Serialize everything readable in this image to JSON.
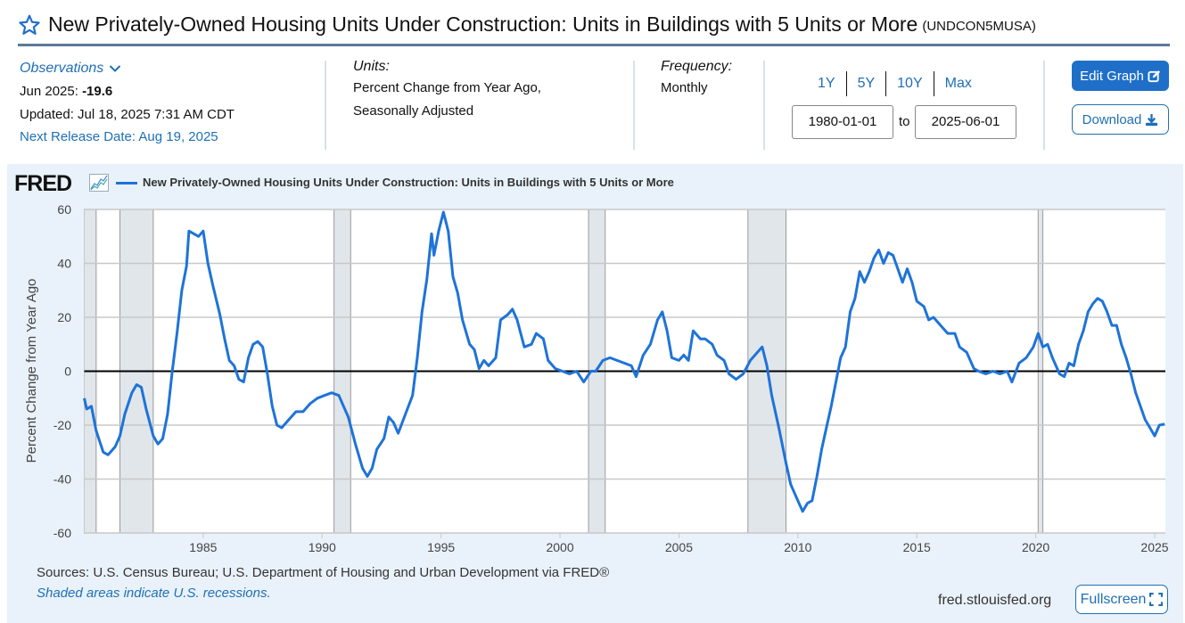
{
  "header": {
    "title": "New Privately-Owned Housing Units Under Construction: Units in Buildings with 5 Units or More",
    "series_id": "(UNDCON5MUSA)"
  },
  "observations": {
    "label": "Observations",
    "latest_label": "Jun 2025:",
    "latest_value": "-19.6",
    "updated": "Updated: Jul 18, 2025 7:31 AM CDT",
    "next_release": "Next Release Date: Aug 19, 2025"
  },
  "units": {
    "label": "Units:",
    "line1": "Percent Change from Year Ago,",
    "line2": "Seasonally Adjusted"
  },
  "frequency": {
    "label": "Frequency:",
    "value": "Monthly"
  },
  "range": {
    "buttons": [
      "1Y",
      "5Y",
      "10Y",
      "Max"
    ],
    "start": "1980-01-01",
    "to_label": "to",
    "end": "2025-06-01"
  },
  "actions": {
    "edit_graph": "Edit Graph",
    "download": "Download",
    "fullscreen": "Fullscreen"
  },
  "footer": {
    "sources": "Sources: U.S. Census Bureau; U.S. Department of Housing and Urban Development via FRED®",
    "shade_note": "Shaded areas indicate U.S. recessions.",
    "site": "fred.stlouisfed.org"
  },
  "logo": "FRED",
  "colors": {
    "accent": "#1f6fb5",
    "line": "#1e73d8",
    "recession": "#e1e6eb",
    "panel": "#e9f2fa"
  },
  "chart_data": {
    "type": "line",
    "title": "New Privately-Owned Housing Units Under Construction: Units in Buildings with 5 Units or More",
    "xlabel": "",
    "ylabel": "Percent Change from Year Ago",
    "xlim": [
      1980.0,
      2025.45
    ],
    "ylim": [
      -60,
      60
    ],
    "x_ticks": [
      1985,
      1990,
      1995,
      2000,
      2005,
      2010,
      2015,
      2020,
      2025
    ],
    "y_ticks": [
      -60,
      -40,
      -20,
      0,
      20,
      40,
      60
    ],
    "grid": true,
    "legend": "top-left",
    "recessions": [
      [
        1980.0,
        1980.5
      ],
      [
        1981.5,
        1982.9
      ],
      [
        1990.5,
        1991.2
      ],
      [
        2001.2,
        2001.9
      ],
      [
        2007.9,
        2009.5
      ],
      [
        2020.1,
        2020.3
      ]
    ],
    "series": [
      {
        "name": "New Privately-Owned Housing Units Under Construction: Units in Buildings with 5 Units or More",
        "x": [
          1980.0,
          1980.1,
          1980.3,
          1980.5,
          1980.8,
          1981.0,
          1981.3,
          1981.5,
          1981.7,
          1982.0,
          1982.2,
          1982.4,
          1982.6,
          1982.9,
          1983.1,
          1983.3,
          1983.5,
          1983.7,
          1983.9,
          1984.1,
          1984.3,
          1984.4,
          1984.6,
          1984.8,
          1985.0,
          1985.2,
          1985.4,
          1985.7,
          1985.9,
          1986.1,
          1986.3,
          1986.5,
          1986.7,
          1986.9,
          1987.1,
          1987.3,
          1987.5,
          1987.7,
          1987.9,
          1988.1,
          1988.3,
          1988.6,
          1988.9,
          1989.2,
          1989.5,
          1989.8,
          1990.1,
          1990.4,
          1990.7,
          1990.9,
          1991.1,
          1991.4,
          1991.7,
          1991.9,
          1992.1,
          1992.3,
          1992.6,
          1992.8,
          1993.0,
          1993.2,
          1993.5,
          1993.8,
          1994.0,
          1994.2,
          1994.4,
          1994.6,
          1994.7,
          1994.9,
          1995.1,
          1995.3,
          1995.5,
          1995.7,
          1995.9,
          1996.2,
          1996.4,
          1996.6,
          1996.8,
          1997.0,
          1997.3,
          1997.5,
          1997.8,
          1998.0,
          1998.2,
          1998.5,
          1998.8,
          1999.0,
          1999.3,
          1999.5,
          1999.8,
          2000.1,
          2000.4,
          2000.7,
          2001.0,
          2001.3,
          2001.5,
          2001.8,
          2002.1,
          2002.4,
          2002.7,
          2003.0,
          2003.2,
          2003.5,
          2003.8,
          2004.1,
          2004.3,
          2004.5,
          2004.7,
          2005.0,
          2005.2,
          2005.4,
          2005.6,
          2005.9,
          2006.1,
          2006.4,
          2006.6,
          2006.9,
          2007.1,
          2007.4,
          2007.7,
          2008.0,
          2008.3,
          2008.5,
          2008.7,
          2008.9,
          2009.2,
          2009.5,
          2009.7,
          2010.0,
          2010.2,
          2010.4,
          2010.6,
          2010.8,
          2011.0,
          2011.2,
          2011.4,
          2011.6,
          2011.8,
          2012.0,
          2012.2,
          2012.4,
          2012.6,
          2012.8,
          2013.0,
          2013.2,
          2013.4,
          2013.6,
          2013.8,
          2014.0,
          2014.2,
          2014.4,
          2014.6,
          2014.8,
          2015.0,
          2015.3,
          2015.5,
          2015.7,
          2016.0,
          2016.3,
          2016.6,
          2016.8,
          2017.1,
          2017.4,
          2017.6,
          2017.9,
          2018.2,
          2018.5,
          2018.8,
          2019.0,
          2019.3,
          2019.6,
          2019.9,
          2020.1,
          2020.3,
          2020.5,
          2020.7,
          2021.0,
          2021.2,
          2021.4,
          2021.6,
          2021.8,
          2022.0,
          2022.2,
          2022.4,
          2022.6,
          2022.8,
          2023.0,
          2023.2,
          2023.4,
          2023.6,
          2023.8,
          2024.0,
          2024.2,
          2024.4,
          2024.6,
          2024.8,
          2025.0,
          2025.2,
          2025.42
        ],
        "values": [
          -10,
          -14,
          -13,
          -22,
          -30,
          -31,
          -28,
          -24,
          -16,
          -8,
          -5,
          -6,
          -14,
          -24,
          -27,
          -25,
          -16,
          0,
          14,
          30,
          39,
          52,
          51,
          50,
          52,
          40,
          32,
          21,
          12,
          4,
          2,
          -3,
          -4,
          5,
          10,
          11,
          9,
          -1,
          -13,
          -20,
          -21,
          -18,
          -15,
          -15,
          -12,
          -10,
          -9,
          -8,
          -9,
          -13,
          -17,
          -27,
          -36,
          -39,
          -36,
          -29,
          -25,
          -17,
          -19,
          -23,
          -16,
          -9,
          5,
          22,
          34,
          51,
          43,
          52,
          59,
          52,
          35,
          29,
          19,
          10,
          8,
          1,
          4,
          2,
          5,
          19,
          21,
          23,
          19,
          9,
          10,
          14,
          12,
          4,
          1,
          0,
          -1,
          0,
          -4,
          0,
          0,
          4,
          5,
          4,
          3,
          2,
          -2,
          6,
          10,
          19,
          22,
          15,
          5,
          4,
          6,
          4,
          15,
          12,
          12,
          10,
          6,
          4,
          -1,
          -3,
          -1,
          4,
          7,
          9,
          2,
          -9,
          -21,
          -34,
          -42,
          -48,
          -52,
          -49,
          -48,
          -39,
          -29,
          -21,
          -13,
          -4,
          5,
          9,
          22,
          27,
          37,
          33,
          37,
          42,
          45,
          40,
          44,
          43,
          38,
          33,
          38,
          33,
          26,
          24,
          19,
          20,
          17,
          14,
          14,
          9,
          7,
          1,
          0,
          -1,
          0,
          -1,
          0,
          -4,
          3,
          5,
          9,
          14,
          9,
          10,
          5,
          -1,
          -2,
          3,
          2,
          10,
          15,
          22,
          25,
          27,
          26,
          22,
          17,
          17,
          10,
          5,
          -1,
          -8,
          -13,
          -18,
          -21,
          -24,
          -20,
          -19.6
        ]
      }
    ]
  }
}
